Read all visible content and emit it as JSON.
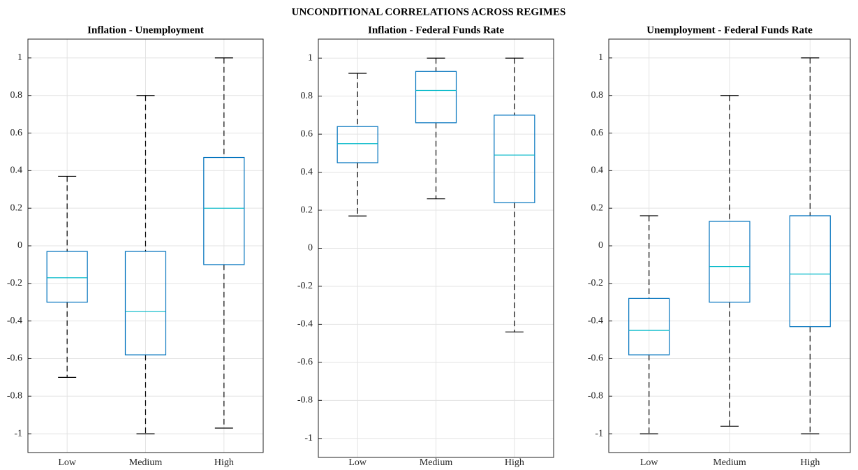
{
  "title": "UNCONDITIONAL CORRELATIONS ACROSS REGIMES",
  "chart_data": [
    {
      "type": "box",
      "title": "Inflation - Unemployment",
      "categories": [
        "Low",
        "Medium",
        "High"
      ],
      "max": [
        0.37,
        0.8,
        1.0
      ],
      "q3": [
        -0.03,
        -0.03,
        0.47
      ],
      "median": [
        -0.17,
        -0.35,
        0.2
      ],
      "q1": [
        -0.3,
        -0.58,
        -0.1
      ],
      "min": [
        -0.7,
        -1.0,
        -0.97
      ],
      "ylim": [
        -1.1,
        1.1
      ],
      "yticks": [
        -1,
        -0.8,
        -0.6,
        -0.4,
        -0.2,
        0,
        0.2,
        0.4,
        0.6,
        0.8,
        1
      ],
      "grid": true,
      "box_color": "#0072bd",
      "median_color": "#00b8c8",
      "whisker_color": "#000000"
    },
    {
      "type": "box",
      "title": "Inflation - Federal Funds Rate",
      "categories": [
        "Low",
        "Medium",
        "High"
      ],
      "max": [
        0.92,
        1.0,
        1.0
      ],
      "q3": [
        0.64,
        0.93,
        0.7
      ],
      "median": [
        0.55,
        0.83,
        0.49
      ],
      "q1": [
        0.45,
        0.66,
        0.24
      ],
      "min": [
        0.17,
        0.26,
        -0.44
      ],
      "ylim": [
        -1.1,
        1.1
      ],
      "yticks": [
        -1,
        -0.8,
        -0.6,
        -0.4,
        -0.2,
        0,
        0.2,
        0.4,
        0.6,
        0.8,
        1
      ],
      "grid": true,
      "box_color": "#0072bd",
      "median_color": "#00b8c8",
      "whisker_color": "#000000"
    },
    {
      "type": "box",
      "title": "Unemployment - Federal Funds Rate",
      "categories": [
        "Low",
        "Medium",
        "High"
      ],
      "max": [
        0.16,
        0.8,
        1.0
      ],
      "q3": [
        -0.28,
        0.13,
        0.16
      ],
      "median": [
        -0.45,
        -0.11,
        -0.15
      ],
      "q1": [
        -0.58,
        -0.3,
        -0.43
      ],
      "min": [
        -1.0,
        -0.96,
        -1.0
      ],
      "ylim": [
        -1.1,
        1.1
      ],
      "yticks": [
        -1,
        -0.8,
        -0.6,
        -0.4,
        -0.2,
        0,
        0.2,
        0.4,
        0.6,
        0.8,
        1
      ],
      "grid": true,
      "box_color": "#0072bd",
      "median_color": "#00b8c8",
      "whisker_color": "#000000"
    }
  ]
}
